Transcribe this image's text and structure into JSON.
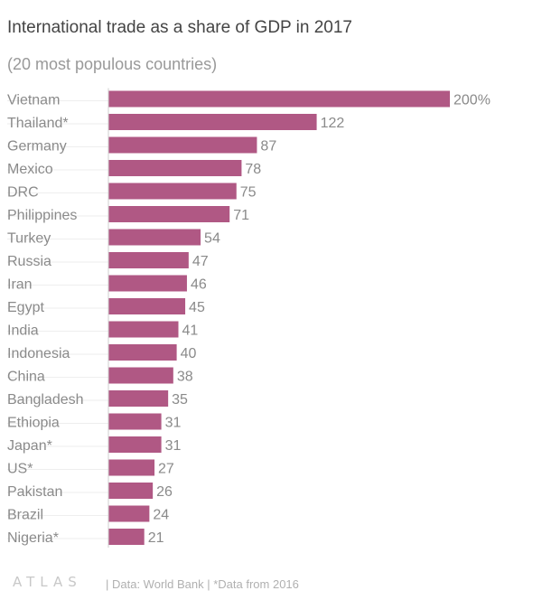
{
  "chart_data": {
    "type": "bar",
    "orientation": "horizontal",
    "title": "International trade as a share of GDP in 2017",
    "subtitle": "(20 most populous countries)",
    "categories": [
      "Vietnam",
      "Thailand*",
      "Germany",
      "Mexico",
      "DRC",
      "Philippines",
      "Turkey",
      "Russia",
      "Iran",
      "Egypt",
      "India",
      "Indonesia",
      "China",
      "Bangladesh",
      "Ethiopia",
      "Japan*",
      "US*",
      "Pakistan",
      "Brazil",
      "Nigeria*"
    ],
    "values": [
      200,
      122,
      87,
      78,
      75,
      71,
      54,
      47,
      46,
      45,
      41,
      40,
      38,
      35,
      31,
      31,
      27,
      26,
      24,
      21
    ],
    "value_labels": [
      "200%",
      "122",
      "87",
      "78",
      "75",
      "71",
      "54",
      "47",
      "46",
      "45",
      "41",
      "40",
      "38",
      "35",
      "31",
      "31",
      "27",
      "26",
      "24",
      "21"
    ],
    "xlim": [
      0,
      200
    ],
    "bar_color": "#b05884",
    "label_color": "#8a8a8a",
    "grid": false
  },
  "footer": {
    "logo": "ATLAS",
    "source": "| Data: World Bank | *Data from 2016"
  }
}
